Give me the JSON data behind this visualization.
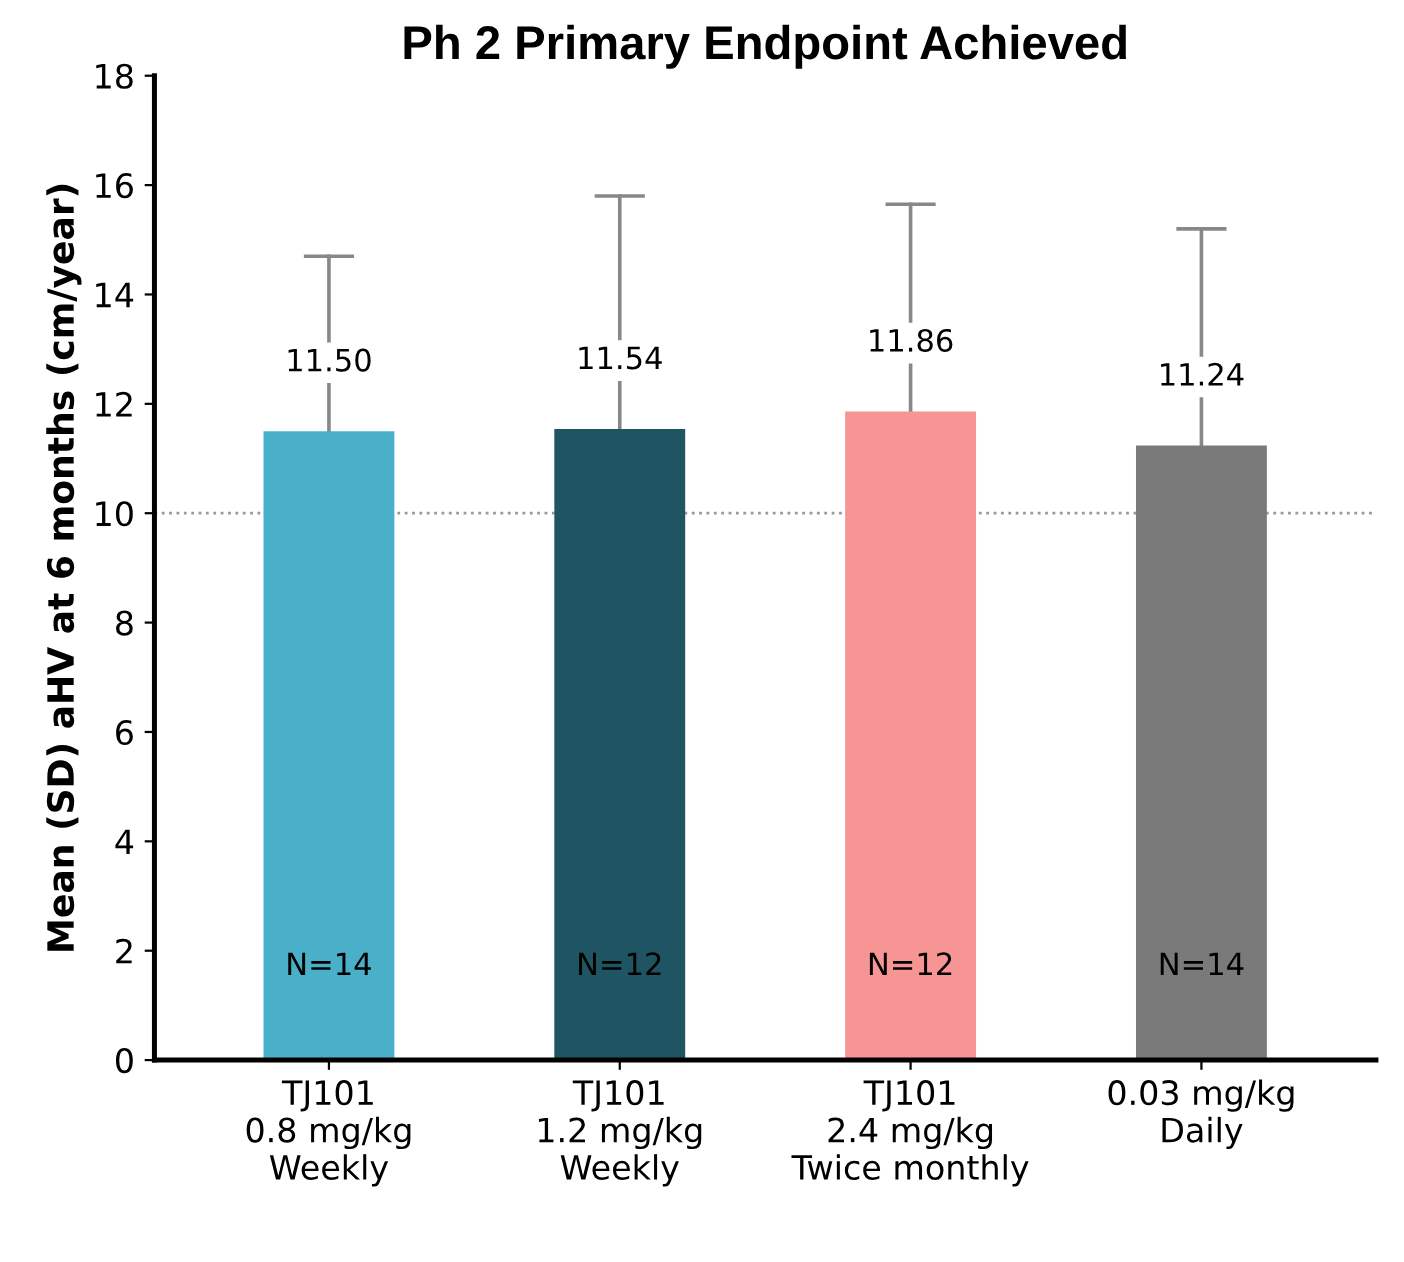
{
  "chart_data": {
    "type": "bar",
    "title": "Ph 2 Primary Endpoint Achieved",
    "ylabel": "Mean (SD) aHV at 6 months (cm/year)",
    "categories": [
      "TJ101\n0.8 mg/kg\nWeekly",
      "TJ101\n1.2 mg/kg\nWeekly",
      "TJ101\n2.4 mg/kg\nTwice monthly",
      "0.03 mg/kg\nDaily"
    ],
    "values": [
      11.5,
      11.54,
      11.86,
      11.24
    ],
    "colors": [
      "#4ab0c9",
      "#1f5563",
      "#f79494",
      "#7a7a7a"
    ],
    "errors": [
      [
        11.5,
        14.7
      ],
      [
        11.54,
        15.8
      ],
      [
        11.86,
        15.65
      ],
      [
        11.24,
        15.2
      ]
    ],
    "value_labels": [
      "11.50",
      "11.54",
      "11.86",
      "11.24"
    ],
    "ylim": [
      0,
      18
    ],
    "yticks": [
      0,
      2,
      4,
      6,
      8,
      10,
      12,
      14,
      16,
      18
    ],
    "ref_lines": [
      {
        "axis": "y",
        "value": 10,
        "color": "#999999",
        "line_style": "dotted"
      }
    ],
    "annotations": [
      "N=14",
      "N=12",
      "N=12",
      "N=14"
    ],
    "grid": false
  }
}
